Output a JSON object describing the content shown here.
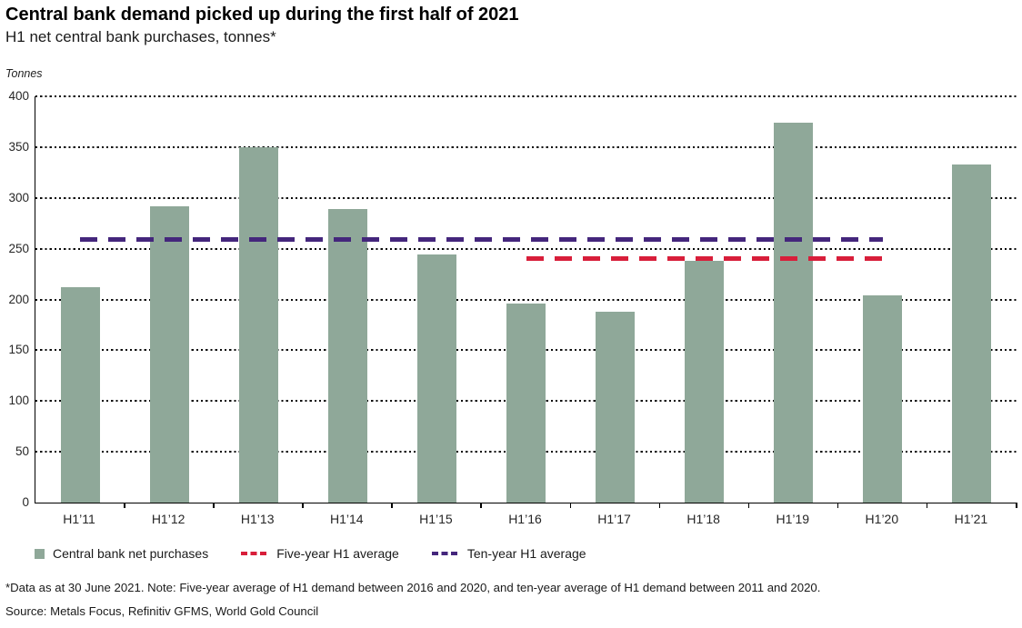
{
  "header": {
    "title": "Central bank demand picked up during the first half of 2021",
    "subtitle": "H1 net central bank purchases, tonnes*"
  },
  "chart_data": {
    "type": "bar",
    "title": "Central bank demand picked up during the first half of 2021",
    "subtitle": "H1 net central bank purchases, tonnes*",
    "ylabel": "Tonnes",
    "xlabel": "",
    "ylim": [
      0,
      400
    ],
    "ytick_step": 50,
    "grid": "horizontal-dotted-black",
    "legend_position": "bottom-left",
    "categories": [
      "H1’11",
      "H1’12",
      "H1’13",
      "H1’14",
      "H1’15",
      "H1’16",
      "H1’17",
      "H1’18",
      "H1’19",
      "H1’20",
      "H1’21"
    ],
    "values": [
      212,
      292,
      350,
      289,
      244,
      196,
      188,
      238,
      374,
      204,
      333
    ],
    "bar_color": "#8fa899",
    "reference_lines": [
      {
        "name": "Five-year H1 average",
        "value": 240,
        "color": "#d81e3a",
        "style": "dashed",
        "span_categories": [
          "H1’16",
          "H1’20"
        ]
      },
      {
        "name": "Ten-year H1 average",
        "value": 259,
        "color": "#44267c",
        "style": "dashed",
        "span_categories": [
          "H1’11",
          "H1’20"
        ]
      }
    ],
    "legend": [
      {
        "label": "Central bank net purchases",
        "swatch": "square",
        "color": "#8fa899"
      },
      {
        "label": "Five-year H1 average",
        "swatch": "dashes",
        "color": "#d81e3a"
      },
      {
        "label": "Ten-year H1 average",
        "swatch": "dashes",
        "color": "#44267c"
      }
    ]
  },
  "footer": {
    "footnote": "*Data as at 30 June 2021. Note: Five-year average of H1 demand between 2016 and 2020, and ten-year average of H1 demand between 2011 and 2020.",
    "source": "Source: Metals Focus, Refinitiv GFMS, World Gold Council"
  }
}
